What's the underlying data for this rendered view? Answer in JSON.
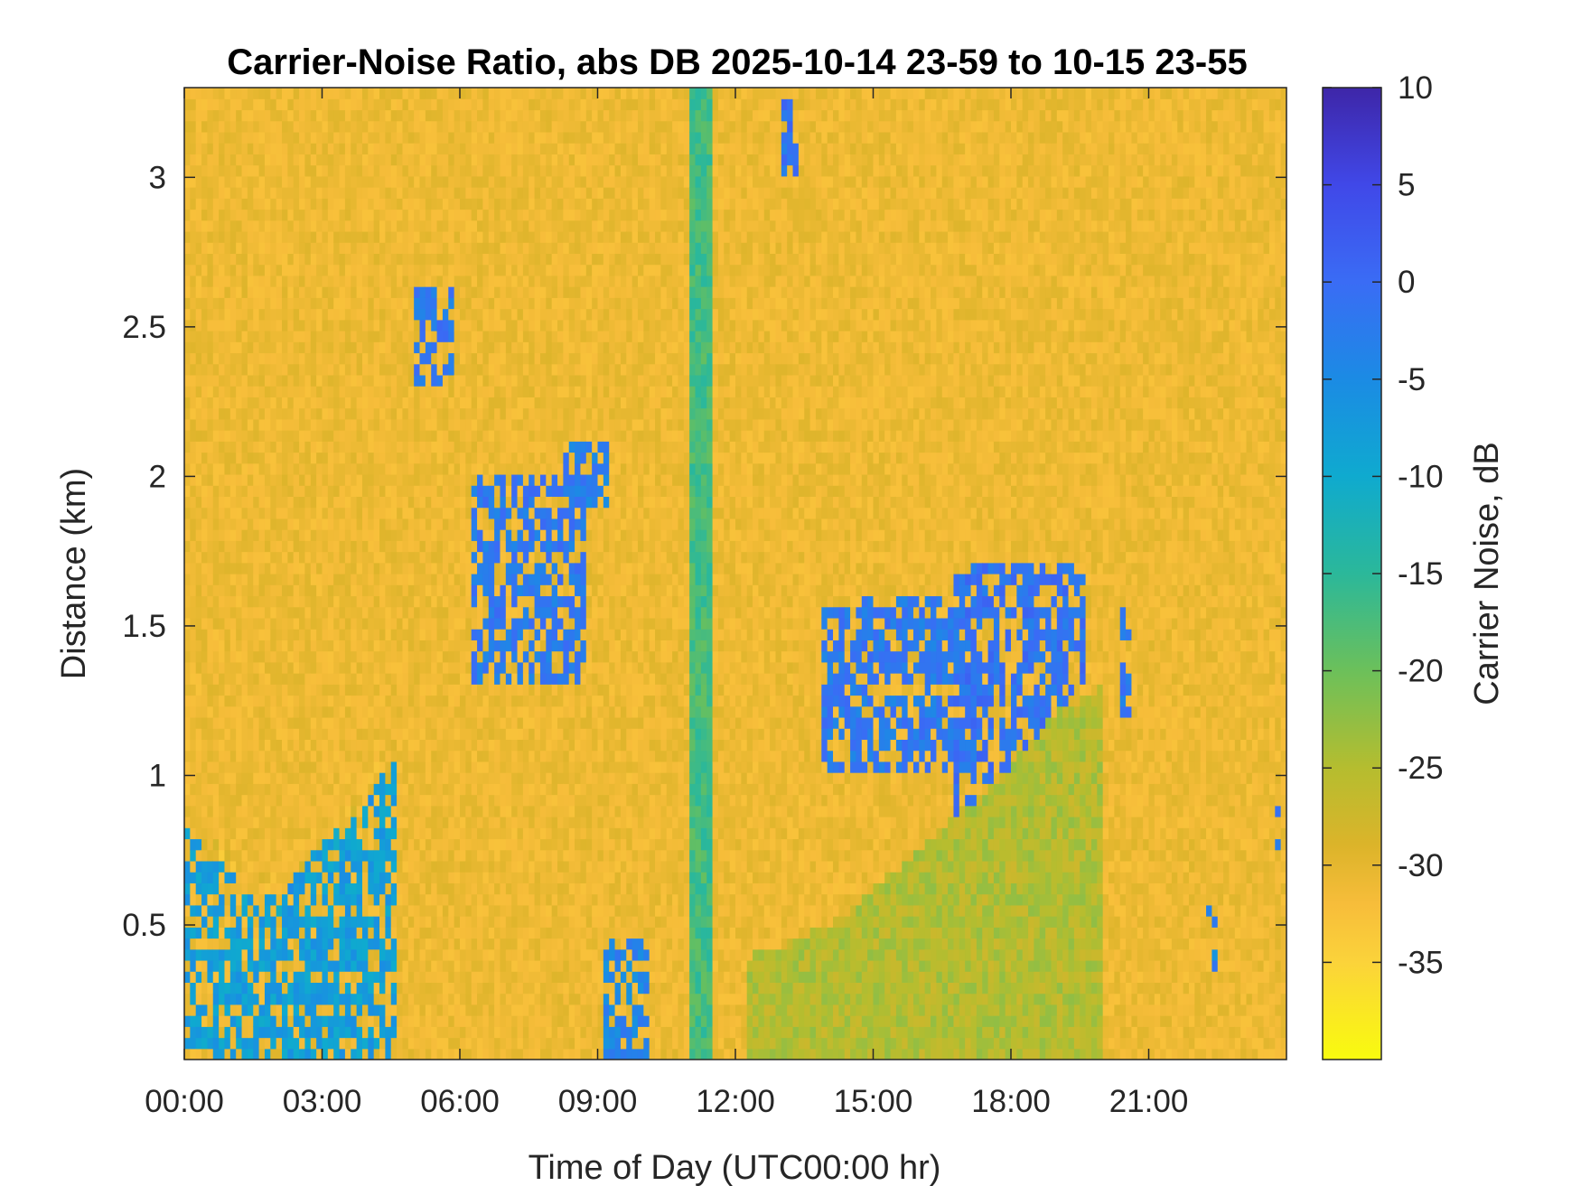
{
  "chart_data": {
    "type": "heatmap",
    "title": "Carrier-Noise Ratio, abs DB 2025-10-14 23-59 to 10-15 23-55",
    "xlabel": "Time of Day (UTC00:00 hr)",
    "ylabel": "Distance (km)",
    "colorbar_label": "Carrier Noise, dB",
    "xlim_hours": [
      0,
      24
    ],
    "ylim_km": [
      0.05,
      3.3
    ],
    "clim_db": [
      -40,
      10
    ],
    "x_ticks": [
      {
        "hour": 0,
        "label": "00:00"
      },
      {
        "hour": 3,
        "label": "03:00"
      },
      {
        "hour": 6,
        "label": "06:00"
      },
      {
        "hour": 9,
        "label": "09:00"
      },
      {
        "hour": 12,
        "label": "12:00"
      },
      {
        "hour": 15,
        "label": "15:00"
      },
      {
        "hour": 18,
        "label": "18:00"
      },
      {
        "hour": 21,
        "label": "21:00"
      }
    ],
    "y_ticks": [
      {
        "km": 0.5,
        "label": "0.5"
      },
      {
        "km": 1,
        "label": "1"
      },
      {
        "km": 1.5,
        "label": "1.5"
      },
      {
        "km": 2,
        "label": "2"
      },
      {
        "km": 2.5,
        "label": "2.5"
      },
      {
        "km": 3,
        "label": "3"
      }
    ],
    "colorbar_ticks": [
      {
        "db": 10,
        "label": "10"
      },
      {
        "db": 5,
        "label": "5"
      },
      {
        "db": 0,
        "label": "0"
      },
      {
        "db": -5,
        "label": "-5"
      },
      {
        "db": -10,
        "label": "-10"
      },
      {
        "db": -15,
        "label": "-15"
      },
      {
        "db": -20,
        "label": "-20"
      },
      {
        "db": -25,
        "label": "-25"
      },
      {
        "db": -30,
        "label": "-30"
      },
      {
        "db": -35,
        "label": "-35"
      }
    ],
    "colormap": "parula-reversed",
    "colormap_stops": [
      {
        "db": -40,
        "color": "#f9fb0e"
      },
      {
        "db": -35,
        "color": "#fbd33a"
      },
      {
        "db": -32,
        "color": "#f7bd3a"
      },
      {
        "db": -29,
        "color": "#dcb42a"
      },
      {
        "db": -25,
        "color": "#b5bd2f"
      },
      {
        "db": -20,
        "color": "#6cc05a"
      },
      {
        "db": -15,
        "color": "#2bb89a"
      },
      {
        "db": -10,
        "color": "#0faacf"
      },
      {
        "db": -5,
        "color": "#1b8be4"
      },
      {
        "db": 0,
        "color": "#3a6cf5"
      },
      {
        "db": 5,
        "color": "#4048e8"
      },
      {
        "db": 10,
        "color": "#3e26a8"
      }
    ],
    "background_db": -31,
    "features": [
      {
        "name": "low-boundary-layer-aerosol",
        "t0": 0,
        "t1": 4.6,
        "base_km": 0.05,
        "top_km": [
          0.82,
          0.74,
          0.68,
          0.62,
          0.6,
          0.7,
          0.78,
          0.86,
          0.95,
          1.05
        ],
        "db": -8
      },
      {
        "name": "boundary-layer-top-edge",
        "t0": 0,
        "t1": 4.6,
        "top_km": [
          0.82,
          0.74,
          0.68,
          0.62,
          0.6,
          0.7,
          0.78,
          0.86,
          0.95,
          1.05
        ],
        "db": 4
      },
      {
        "name": "cloud-patch-0520",
        "t0": 5.05,
        "t1": 5.9,
        "base_km": 2.3,
        "top_km": 2.65,
        "db": -2
      },
      {
        "name": "cloud-patch-0630",
        "t0": 6.3,
        "t1": 8.8,
        "base_km": 1.3,
        "top_km": 2.0,
        "db": -2
      },
      {
        "name": "cloud-patch-0840",
        "t0": 8.3,
        "t1": 9.2,
        "base_km": 1.9,
        "top_km": 2.1,
        "db": -3
      },
      {
        "name": "cloud-patch-0930",
        "t0": 9.1,
        "t1": 10.1,
        "base_km": 0.05,
        "top_km": 0.45,
        "db": -4
      },
      {
        "name": "instrument-artifact-1100",
        "t0": 11.0,
        "t1": 11.5,
        "base_km": 0.05,
        "top_km": 3.3,
        "db": -17
      },
      {
        "name": "cloud-patch-1310",
        "t0": 13.05,
        "t1": 13.35,
        "base_km": 3.0,
        "top_km": 3.25,
        "db": -1
      },
      {
        "name": "cloud-layer-1400",
        "t0": 13.9,
        "t1": 17.2,
        "base_km": 1.0,
        "top_km": 1.6,
        "db": -2
      },
      {
        "name": "cloud-layer-1800",
        "t0": 16.8,
        "t1": 19.6,
        "base_km": 0.85,
        "top_km": 1.7,
        "db": -1
      },
      {
        "name": "boundary-layer-1200-2100",
        "t0": 12.3,
        "t1": 20.0,
        "base_km": 0.05,
        "top_km": [
          0.4,
          0.45,
          0.55,
          0.7,
          0.85,
          1.0,
          1.2,
          1.3
        ],
        "db": -25
      },
      {
        "name": "cloud-patch-2030",
        "t0": 20.4,
        "t1": 20.6,
        "base_km": 1.2,
        "top_km": 1.6,
        "db": -2
      },
      {
        "name": "cloud-patch-2215",
        "t0": 22.2,
        "t1": 22.5,
        "base_km": 0.35,
        "top_km": 0.55,
        "db": -4
      },
      {
        "name": "cloud-patch-2350",
        "t0": 23.7,
        "t1": 23.9,
        "base_km": 0.75,
        "top_km": 0.9,
        "db": -3
      }
    ]
  }
}
